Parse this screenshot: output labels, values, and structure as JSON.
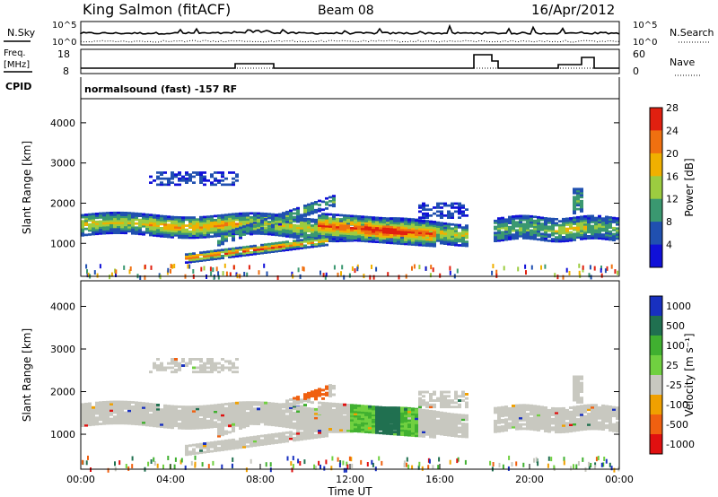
{
  "header": {
    "title": "King Salmon (fitACF)",
    "beam": "Beam 08",
    "date": "16/Apr/2012"
  },
  "top_panels": {
    "nsky_label": "N.Sky",
    "nsearch_label": "N.Search",
    "nsky_ticks": [
      "10^5",
      "10^0"
    ],
    "nsearch_ticks": [
      "10^5",
      "10^0"
    ],
    "freq_label_1": "Freq.",
    "freq_label_2": "[MHz]",
    "freq_ticks": [
      "18",
      "8"
    ],
    "nave_label": "Nave",
    "nave_ticks": [
      "60",
      "0"
    ],
    "cpid_label": "CPID",
    "cpid_text": "normalsound (fast) -157 RF"
  },
  "chart_data": [
    {
      "type": "heatmap",
      "name": "Power",
      "xlabel": "",
      "ylabel": "Slant Range [km]",
      "ylim": [
        180,
        4600
      ],
      "yticks": [
        "1000",
        "2000",
        "3000",
        "4000"
      ],
      "colorbar_label": "Power [dB]",
      "colorbar_ticks": [
        "4",
        "8",
        "12",
        "16",
        "20",
        "24",
        "28"
      ],
      "colors": [
        "#1010d8",
        "#2050b0",
        "#3a9870",
        "#9ccc40",
        "#f0b000",
        "#f07010",
        "#e02010"
      ]
    },
    {
      "type": "heatmap",
      "name": "Velocity",
      "xlabel": "Time UT",
      "ylabel": "Slant Range [km]",
      "ylim": [
        180,
        4600
      ],
      "yticks": [
        "1000",
        "2000",
        "3000",
        "4000"
      ],
      "xticks": [
        "00:00",
        "04:00",
        "08:00",
        "12:00",
        "16:00",
        "20:00",
        "00:00"
      ],
      "colorbar_label": "Velocity [m s⁻¹]",
      "colorbar_ticks": [
        "1000",
        "500",
        "100",
        "25",
        "-25",
        "-100",
        "-500",
        "-1000"
      ],
      "colors": [
        "#1830c0",
        "#207050",
        "#40b030",
        "#70d040",
        "#c8c8c0",
        "#f0a000",
        "#f06010",
        "#e01010"
      ]
    }
  ]
}
